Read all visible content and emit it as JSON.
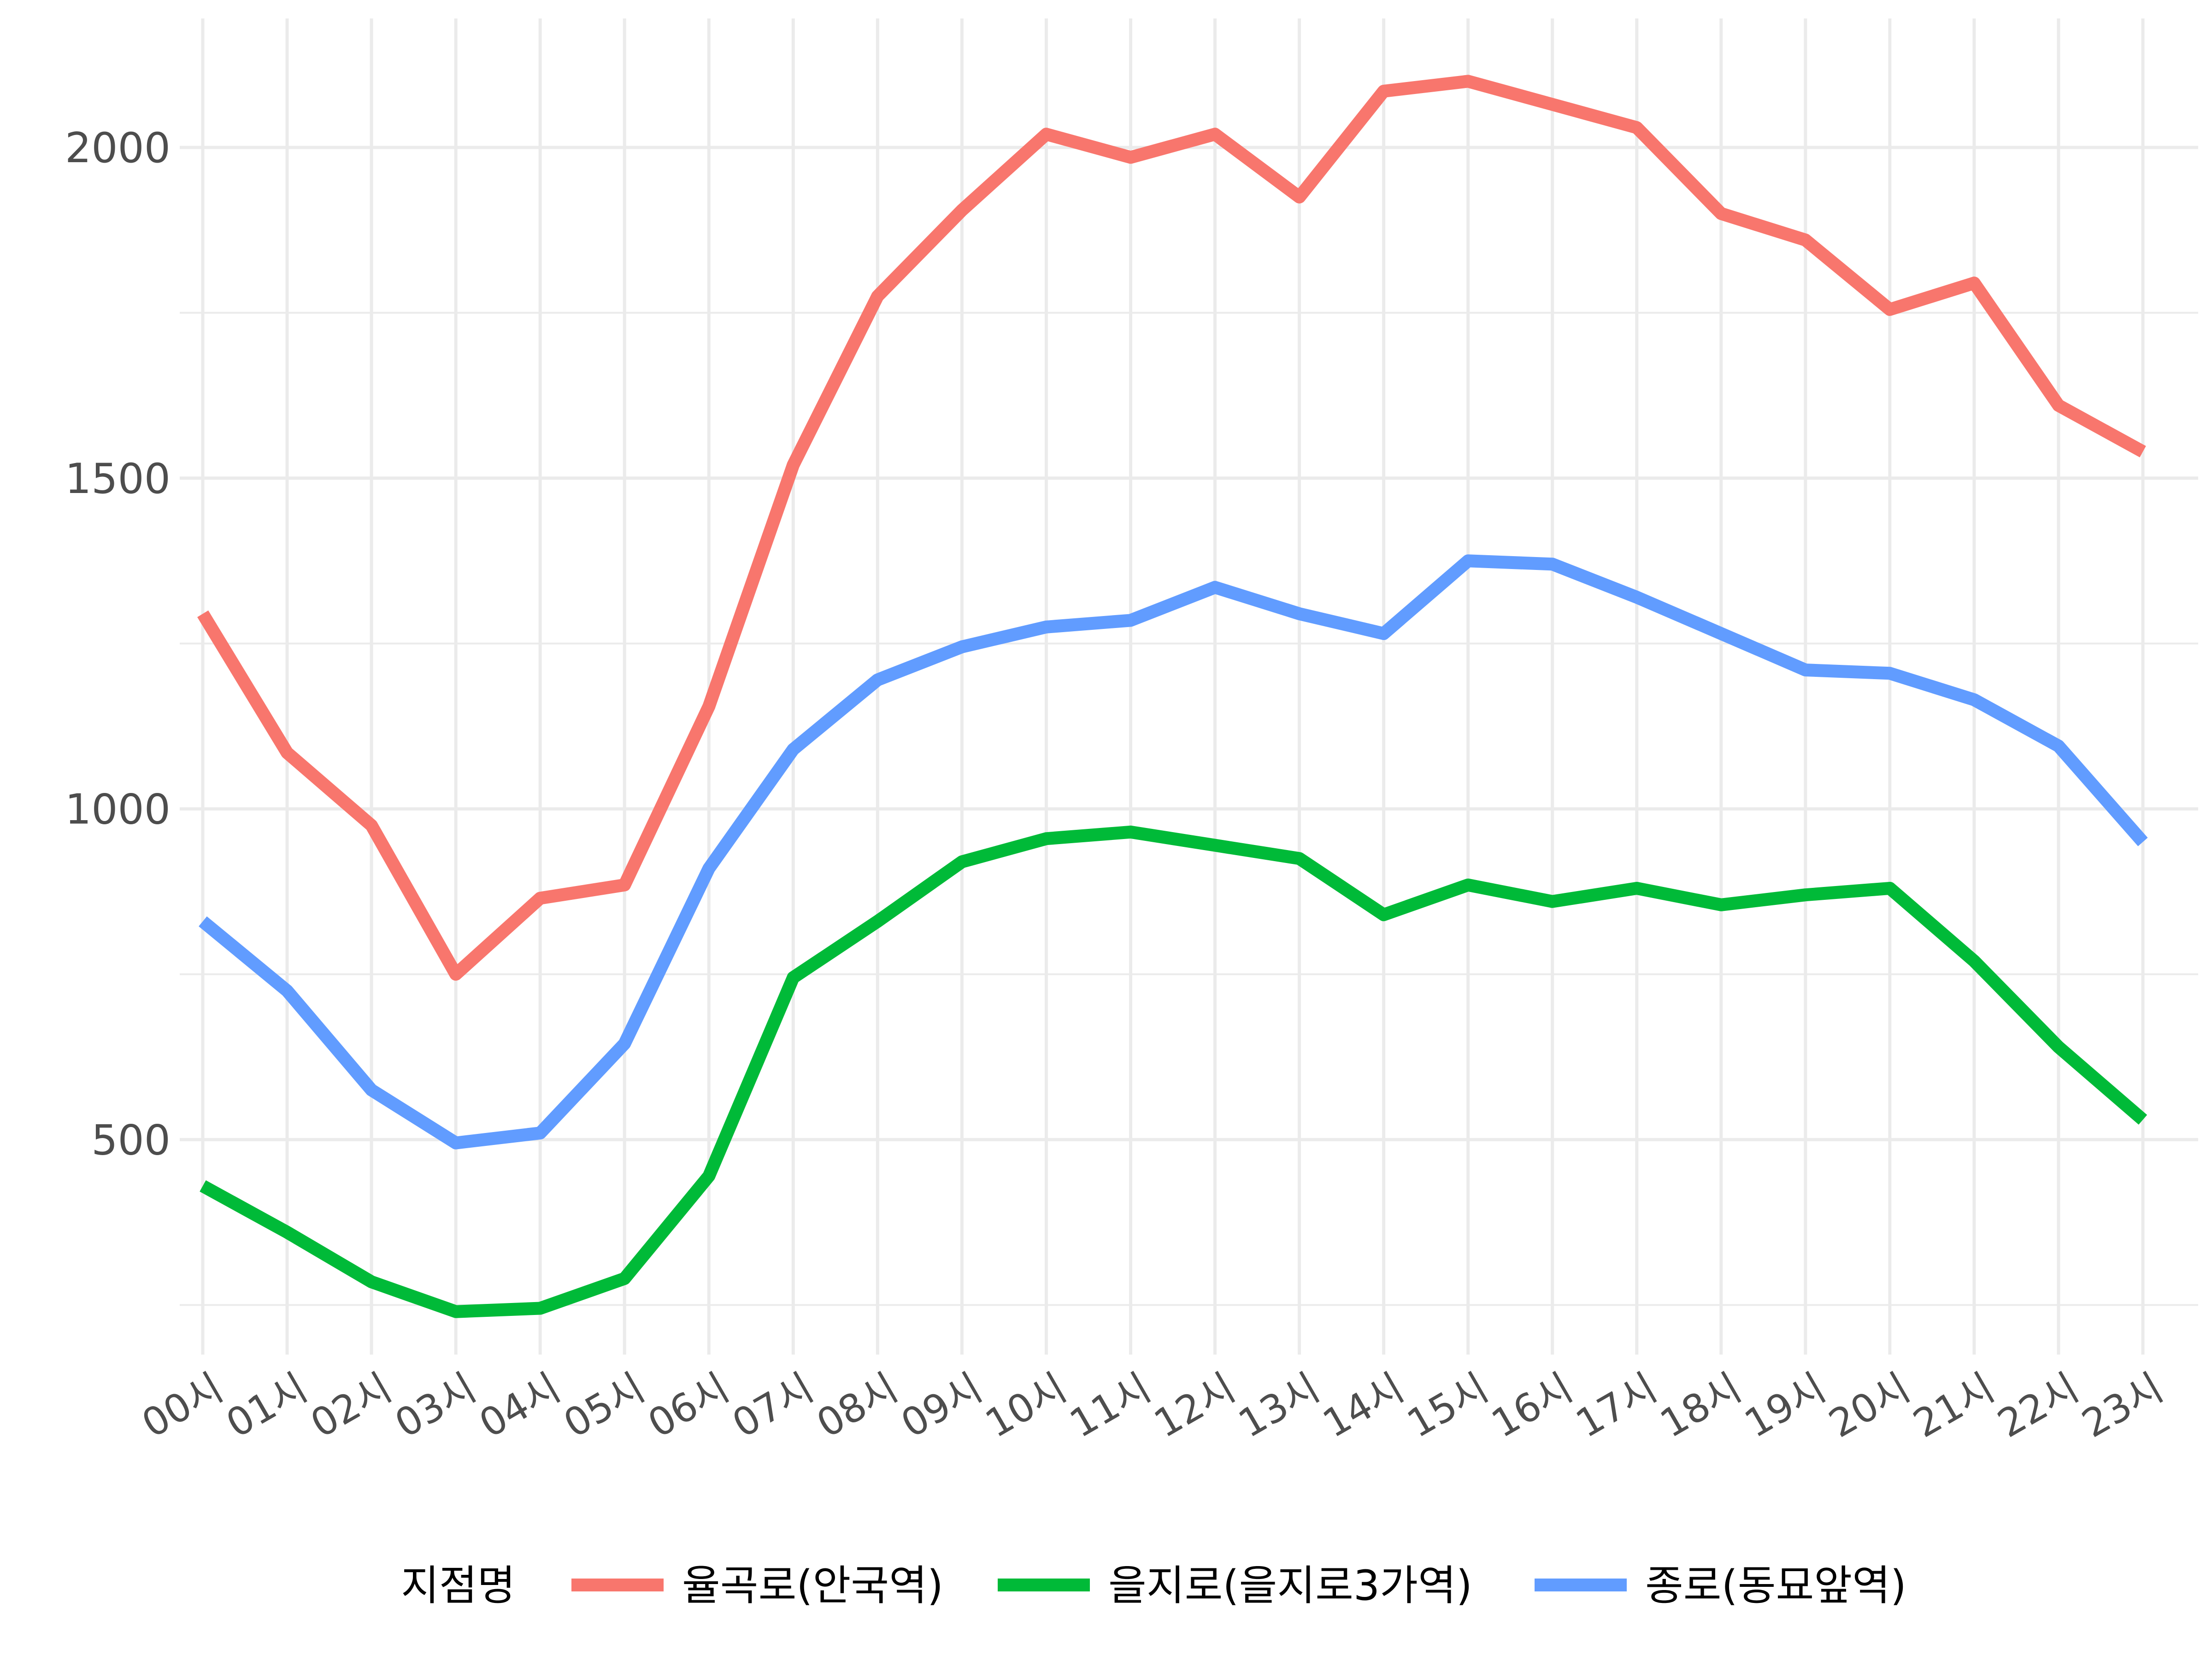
{
  "chart_data": {
    "type": "line",
    "title": "",
    "xlabel": "",
    "ylabel": "",
    "categories": [
      "00시",
      "01시",
      "02시",
      "03시",
      "04시",
      "05시",
      "06시",
      "07시",
      "08시",
      "09시",
      "10시",
      "11시",
      "12시",
      "13시",
      "14시",
      "15시",
      "16시",
      "17시",
      "18시",
      "19시",
      "20시",
      "21시",
      "22시",
      "23시"
    ],
    "y_ticks": [
      500,
      1000,
      1500,
      2000
    ],
    "y_tick_labels": [
      "500",
      "1000",
      "1500",
      "2000"
    ],
    "ylim": [
      175,
      2195
    ],
    "grid": true,
    "legend_placement": "bottom",
    "legend_title": "지점명",
    "series": [
      {
        "name": "율곡로(안국역)",
        "color": "#F8766D",
        "values": [
          1295,
          1085,
          975,
          750,
          865,
          885,
          1155,
          1520,
          1775,
          1905,
          2020,
          1985,
          2020,
          1925,
          2085,
          2100,
          2065,
          2030,
          1900,
          1860,
          1755,
          1795,
          1610,
          1540
        ]
      },
      {
        "name": "을지로(을지로3가역)",
        "color": "#00BA38",
        "values": [
          430,
          360,
          285,
          240,
          245,
          290,
          445,
          745,
          830,
          920,
          955,
          965,
          945,
          925,
          840,
          885,
          860,
          880,
          855,
          870,
          880,
          770,
          640,
          530
        ]
      },
      {
        "name": "종로(동묘앞역)",
        "color": "#619CFF",
        "values": [
          830,
          725,
          575,
          495,
          510,
          645,
          910,
          1090,
          1195,
          1245,
          1275,
          1285,
          1335,
          1295,
          1265,
          1375,
          1370,
          1320,
          1265,
          1210,
          1205,
          1165,
          1095,
          950
        ]
      }
    ]
  }
}
